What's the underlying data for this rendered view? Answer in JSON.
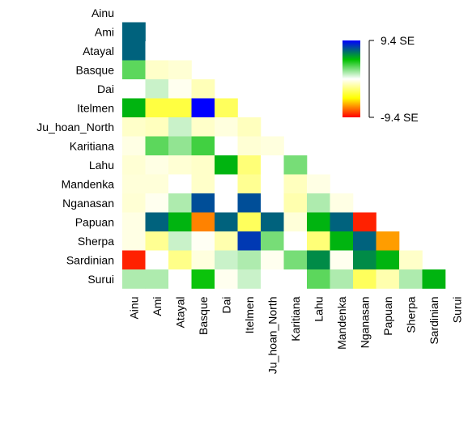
{
  "chart_data": {
    "type": "heatmap",
    "title": "",
    "xlabel": "",
    "ylabel": "",
    "layout": "lower-triangle",
    "rows": [
      "Ainu",
      "Ami",
      "Atayal",
      "Basque",
      "Dai",
      "Itelmen",
      "Ju_hoan_North",
      "Karitiana",
      "Lahu",
      "Mandenka",
      "Nganasan",
      "Papuan",
      "Sherpa",
      "Sardinian",
      "Surui"
    ],
    "columns": [
      "Ainu",
      "Ami",
      "Atayal",
      "Basque",
      "Dai",
      "Itelmen",
      "Ju_hoan_North",
      "Karitiana",
      "Lahu",
      "Mandenka",
      "Nganasan",
      "Papuan",
      "Sherpa",
      "Sardinian",
      "Surui"
    ],
    "values": [
      [],
      [
        7.0
      ],
      [
        7.0,
        0.0
      ],
      [
        3.0,
        -1.0,
        -0.8
      ],
      [
        0.0,
        1.0,
        -0.3,
        -1.3
      ],
      [
        5.0,
        -3.5,
        -3.5,
        9.4,
        -3.0
      ],
      [
        -1.0,
        -1.2,
        1.0,
        -1.0,
        -0.6,
        -1.2
      ],
      [
        -0.5,
        3.0,
        2.0,
        3.5,
        0.0,
        -0.8,
        -0.6
      ],
      [
        -0.8,
        -0.5,
        -0.8,
        -1.0,
        5.0,
        -2.5,
        0.0,
        2.5
      ],
      [
        -0.7,
        -0.7,
        0.0,
        -1.0,
        0.0,
        -2.0,
        0.0,
        -1.2,
        -0.5
      ],
      [
        -0.8,
        -0.3,
        1.5,
        7.5,
        0.0,
        7.5,
        0.0,
        -1.5,
        1.5,
        -0.5
      ],
      [
        -0.5,
        7.0,
        5.0,
        -7.0,
        7.0,
        -3.0,
        7.0,
        -0.7,
        5.0,
        7.0,
        -8.8
      ],
      [
        -0.5,
        -2.0,
        1.0,
        -0.2,
        -1.5,
        8.0,
        2.5,
        0.0,
        -2.5,
        5.0,
        7.0,
        -6.5
      ],
      [
        -8.8,
        0.0,
        -2.2,
        -0.6,
        1.0,
        1.5,
        -0.3,
        2.5,
        6.0,
        -0.3,
        6.0,
        5.0,
        -1.0
      ],
      [
        1.5,
        1.5,
        0.0,
        4.5,
        -0.3,
        1.0,
        0.0,
        0.0,
        3.0,
        1.5,
        -3.0,
        -1.5,
        1.5,
        5.0
      ]
    ],
    "scale": {
      "min": -9.4,
      "max": 9.4,
      "max_label": "9.4 SE",
      "min_label": "-9.4 SE"
    },
    "colors": {
      "max": "#0000ff",
      "high": "#00c000",
      "mid": "#ffffff",
      "low": "#ffff00",
      "min": "#ff0000"
    }
  }
}
